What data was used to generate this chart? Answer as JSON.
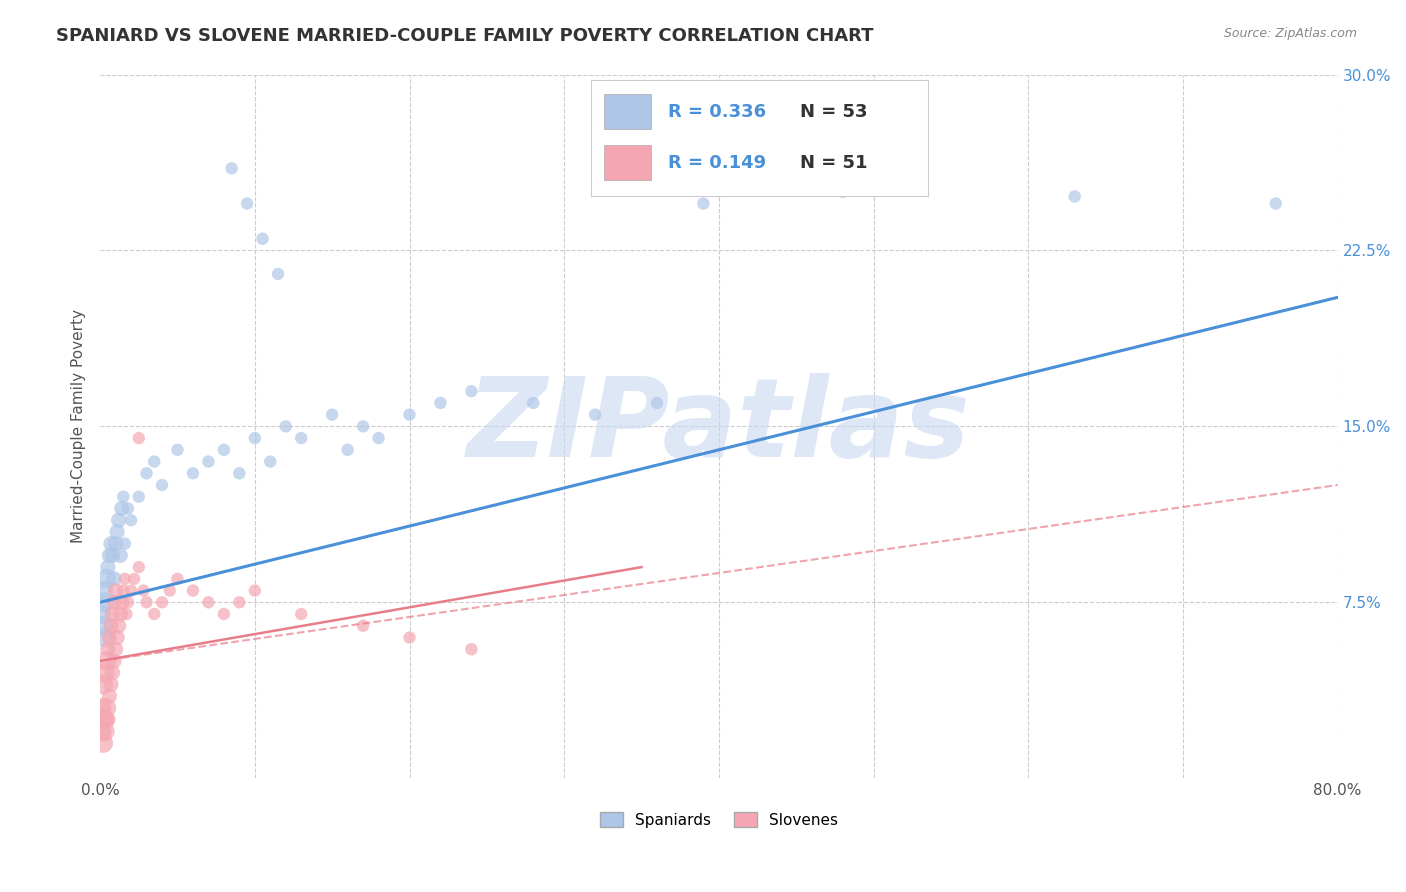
{
  "title": "SPANIARD VS SLOVENE MARRIED-COUPLE FAMILY POVERTY CORRELATION CHART",
  "source": "Source: ZipAtlas.com",
  "ylabel": "Married-Couple Family Poverty",
  "xlim": [
    0.0,
    0.8
  ],
  "ylim": [
    0.0,
    0.3
  ],
  "xticks": [
    0.0,
    0.8
  ],
  "xticklabels": [
    "0.0%",
    "80.0%"
  ],
  "yticks": [
    0.0,
    0.075,
    0.15,
    0.225,
    0.3
  ],
  "yticklabels": [
    "",
    "7.5%",
    "15.0%",
    "22.5%",
    "30.0%"
  ],
  "grid_yticks": [
    0.075,
    0.15,
    0.225,
    0.3
  ],
  "grid_xticks": [
    0.1,
    0.2,
    0.3,
    0.4,
    0.5,
    0.6,
    0.7,
    0.8
  ],
  "grid_color": "#cccccc",
  "background_color": "#ffffff",
  "spaniard_color": "#aec6e8",
  "slovene_color": "#f4a7b2",
  "spaniard_line_color": "#4a90d9",
  "slovene_line_color": "#e87d8a",
  "R_spaniard": 0.336,
  "N_spaniard": 53,
  "R_slovene": 0.149,
  "N_slovene": 51,
  "watermark": "ZIPatlas",
  "watermark_color": "#c8d8f0",
  "title_fontsize": 13,
  "axis_label_fontsize": 11,
  "tick_fontsize": 11,
  "legend_fontsize": 13,
  "spaniard_line_x": [
    0.0,
    0.8
  ],
  "spaniard_line_y": [
    0.075,
    0.205
  ],
  "slovene_line_x": [
    0.0,
    0.35
  ],
  "slovene_line_y": [
    0.05,
    0.09
  ],
  "slovene_dashed_line_x": [
    0.0,
    0.8
  ],
  "slovene_dashed_line_y": [
    0.05,
    0.125
  ]
}
